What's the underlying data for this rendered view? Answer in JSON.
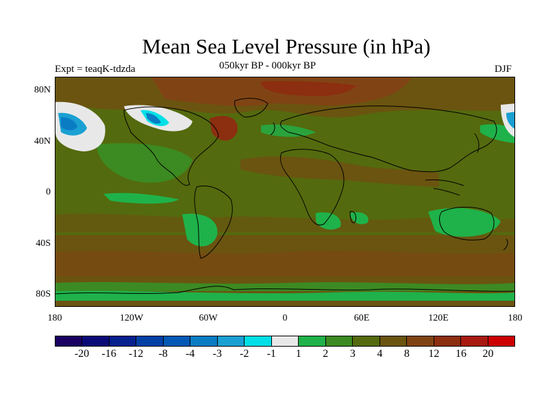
{
  "title": "Mean Sea Level Pressure (in hPa)",
  "subtitle": "050kyr BP - 000kyr BP",
  "expt_label": "Expt = teaqK-tdzda",
  "season_label": "DJF",
  "lat_labels": [
    "80N",
    "40N",
    "0",
    "40S",
    "80S"
  ],
  "lon_labels": [
    "180",
    "120W",
    "60W",
    "0",
    "60E",
    "120E",
    "180"
  ],
  "colorbar": {
    "colors": [
      "#1a0060",
      "#0a0a78",
      "#06208e",
      "#0240a6",
      "#0258b4",
      "#0a7cc4",
      "#1aa0d2",
      "#00e0e6",
      "#e8e8e8",
      "#1fb24a",
      "#3c8a22",
      "#546a0e",
      "#6a5410",
      "#804414",
      "#8c2e10",
      "#a81a10",
      "#cc0000"
    ],
    "labels": [
      "-20",
      "-16",
      "-12",
      "-8",
      "-4",
      "-3",
      "-2",
      "-1",
      "1",
      "2",
      "3",
      "4",
      "8",
      "12",
      "16",
      "20"
    ]
  },
  "map_colors": {
    "background": "#546a0e",
    "positive_green": "#1fb24a",
    "mid_green": "#3c8a22",
    "brown": "#6a5410",
    "dark_brown": "#804414",
    "red_brown": "#8c2e10",
    "red": "#a81a10",
    "white": "#e8e8e8",
    "cyan": "#00e0e6",
    "light_blue": "#1aa0d2",
    "blue": "#0a7cc4",
    "coast": "#000000"
  }
}
